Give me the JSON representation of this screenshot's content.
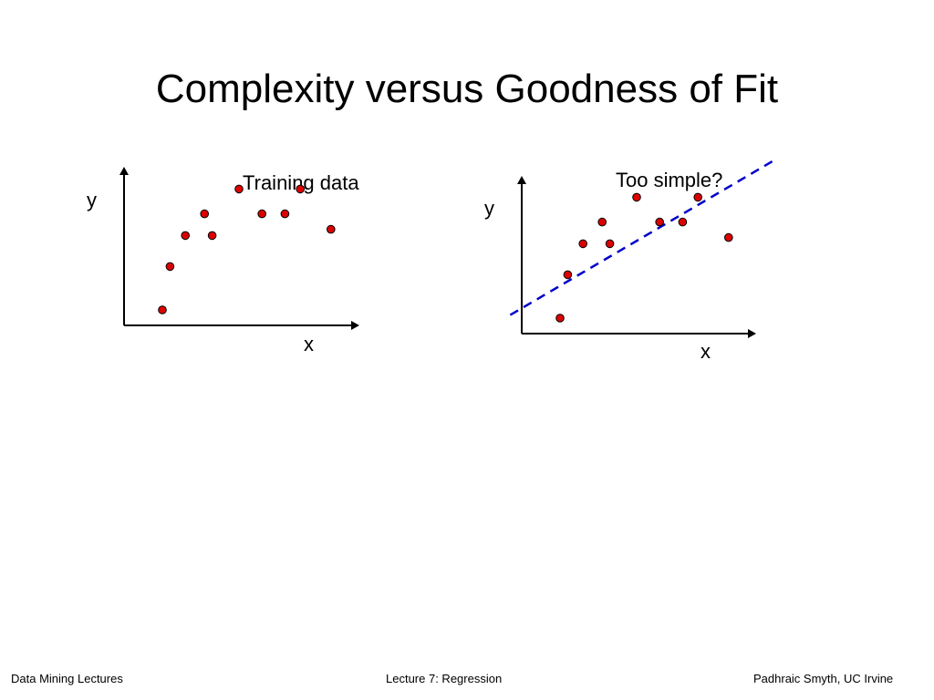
{
  "slide": {
    "title": "Complexity versus Goodness of Fit"
  },
  "panels": [
    {
      "caption": "Training data",
      "x_label": "x",
      "y_label": "y",
      "points": [
        [
          10,
          5
        ],
        [
          12,
          19
        ],
        [
          16,
          29
        ],
        [
          21,
          36
        ],
        [
          23,
          29
        ],
        [
          30,
          44
        ],
        [
          36,
          36
        ],
        [
          42,
          36
        ],
        [
          46,
          44
        ],
        [
          54,
          31
        ]
      ]
    },
    {
      "caption": "Too simple?",
      "x_label": "x",
      "y_label": "y",
      "points": [
        [
          10,
          5
        ],
        [
          12,
          19
        ],
        [
          16,
          29
        ],
        [
          21,
          36
        ],
        [
          23,
          29
        ],
        [
          30,
          44
        ],
        [
          36,
          36
        ],
        [
          42,
          36
        ],
        [
          46,
          44
        ],
        [
          54,
          31
        ]
      ],
      "fit_line": [
        [
          -3,
          6
        ],
        [
          66,
          56
        ]
      ]
    }
  ],
  "footer": {
    "left": "Data Mining Lectures",
    "center": "Lecture 7: Regression",
    "right": "Padhraic Smyth, UC Irvine"
  },
  "colors": {
    "point_fill": "#dd0000",
    "fit_line": "#0000cc",
    "text": "#000000"
  }
}
